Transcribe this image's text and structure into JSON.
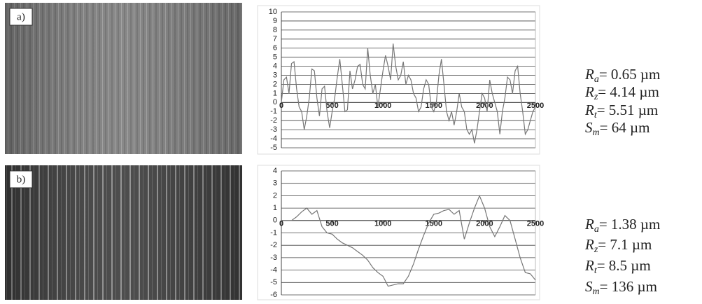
{
  "chart_data": [
    {
      "type": "line",
      "color": "#777777",
      "grid": true,
      "xlim": [
        0,
        2500
      ],
      "xticks": [
        0,
        500,
        1000,
        1500,
        2000,
        2500
      ],
      "ylim": [
        -5,
        10
      ],
      "yticks": [
        -5,
        -4,
        -3,
        -2,
        -1,
        0,
        1,
        2,
        3,
        4,
        5,
        6,
        7,
        8,
        9,
        10
      ],
      "x": [
        0,
        25,
        50,
        75,
        100,
        125,
        150,
        175,
        200,
        225,
        250,
        275,
        300,
        325,
        350,
        375,
        400,
        425,
        450,
        475,
        500,
        525,
        550,
        575,
        600,
        625,
        650,
        675,
        700,
        725,
        750,
        775,
        800,
        825,
        850,
        875,
        900,
        925,
        950,
        975,
        1000,
        1025,
        1050,
        1075,
        1100,
        1125,
        1150,
        1175,
        1200,
        1225,
        1250,
        1275,
        1300,
        1325,
        1350,
        1375,
        1400,
        1425,
        1450,
        1475,
        1500,
        1525,
        1550,
        1575,
        1600,
        1625,
        1650,
        1675,
        1700,
        1725,
        1750,
        1775,
        1800,
        1825,
        1850,
        1875,
        1900,
        1925,
        1950,
        1975,
        2000,
        2025,
        2050,
        2075,
        2100,
        2125,
        2150,
        2175,
        2200,
        2225,
        2250,
        2275,
        2300,
        2325,
        2350,
        2375,
        2400,
        2425,
        2450,
        2475,
        2500
      ],
      "values": [
        0,
        2.5,
        2.8,
        1,
        4.3,
        4.5,
        1.5,
        -0.5,
        -1,
        -3,
        -1.5,
        0.5,
        3.7,
        3.5,
        0.5,
        -1.5,
        1.5,
        1.8,
        -1,
        -2.8,
        -1,
        0.5,
        2.8,
        4.8,
        2,
        -1,
        -0.8,
        3.5,
        1.5,
        2.5,
        4,
        4.2,
        2,
        1.5,
        6,
        3,
        1,
        2,
        -0.5,
        1.5,
        3.5,
        5.2,
        4,
        2.5,
        6.5,
        4,
        2.5,
        3,
        4.5,
        2,
        3,
        2.5,
        1,
        0.5,
        -1,
        -0.5,
        1.5,
        2.5,
        2,
        -0.5,
        -1,
        0,
        3,
        4.8,
        2,
        -1,
        -2,
        -1,
        -2.5,
        -1,
        1,
        -0.5,
        -1,
        -3,
        -3.5,
        -3,
        -4.5,
        -3,
        -1,
        1,
        0.5,
        -1,
        2.5,
        1,
        0,
        -1,
        -3.5,
        -1,
        0.5,
        2.8,
        2.5,
        1,
        3.5,
        4,
        1,
        -1,
        -3.5,
        -3,
        -2,
        -1,
        -0.5
      ]
    },
    {
      "type": "line",
      "color": "#777777",
      "grid": true,
      "xlim": [
        0,
        2500
      ],
      "xticks": [
        0,
        500,
        1000,
        1500,
        2000,
        2500
      ],
      "ylim": [
        -6,
        4
      ],
      "yticks": [
        -6,
        -5,
        -4,
        -3,
        -2,
        -1,
        0,
        1,
        2,
        3,
        4
      ],
      "x": [
        0,
        100,
        150,
        200,
        250,
        300,
        350,
        400,
        450,
        500,
        550,
        600,
        650,
        700,
        750,
        800,
        850,
        900,
        950,
        1000,
        1050,
        1100,
        1150,
        1200,
        1250,
        1300,
        1350,
        1400,
        1450,
        1500,
        1550,
        1600,
        1650,
        1700,
        1750,
        1800,
        1850,
        1900,
        1950,
        2000,
        2050,
        2100,
        2150,
        2200,
        2250,
        2300,
        2350,
        2400,
        2450,
        2500
      ],
      "values": [
        0,
        0,
        0.3,
        0.7,
        1,
        0.5,
        0.8,
        -0.5,
        -1,
        -1.1,
        -1.5,
        -1.8,
        -2,
        -2.2,
        -2.5,
        -2.8,
        -3.2,
        -3.8,
        -4.2,
        -4.5,
        -5.3,
        -5.2,
        -5.1,
        -5.1,
        -4.5,
        -3.5,
        -2.3,
        -1.2,
        -0.2,
        0.5,
        0.6,
        0.8,
        0.9,
        0.5,
        0.8,
        -1.5,
        -0.2,
        1,
        2,
        1,
        -0.5,
        -1.3,
        -0.5,
        0.4,
        0,
        -1.5,
        -3,
        -4.2,
        -4.3,
        -4.8
      ]
    }
  ],
  "panels": [
    {
      "label": "a)",
      "parameters": [
        {
          "symbol": "R",
          "subscript": "a",
          "value": "= 0.65 µm"
        },
        {
          "symbol": "R",
          "subscript": "z",
          "value": "= 4.14 µm"
        },
        {
          "symbol": "R",
          "subscript": "t",
          "value": "= 5.51 µm"
        },
        {
          "symbol": "S",
          "subscript": "m",
          "value": "= 64 µm"
        }
      ]
    },
    {
      "label": "b)",
      "parameters": [
        {
          "symbol": "R",
          "subscript": "a",
          "value": "= 1.38 µm"
        },
        {
          "symbol": "R",
          "subscript": "z",
          "value": "= 7.1 µm"
        },
        {
          "symbol": "R",
          "subscript": "t",
          "value": "= 8.5 µm"
        },
        {
          "symbol": "S",
          "subscript": "m",
          "value": "= 136 µm"
        }
      ]
    }
  ]
}
